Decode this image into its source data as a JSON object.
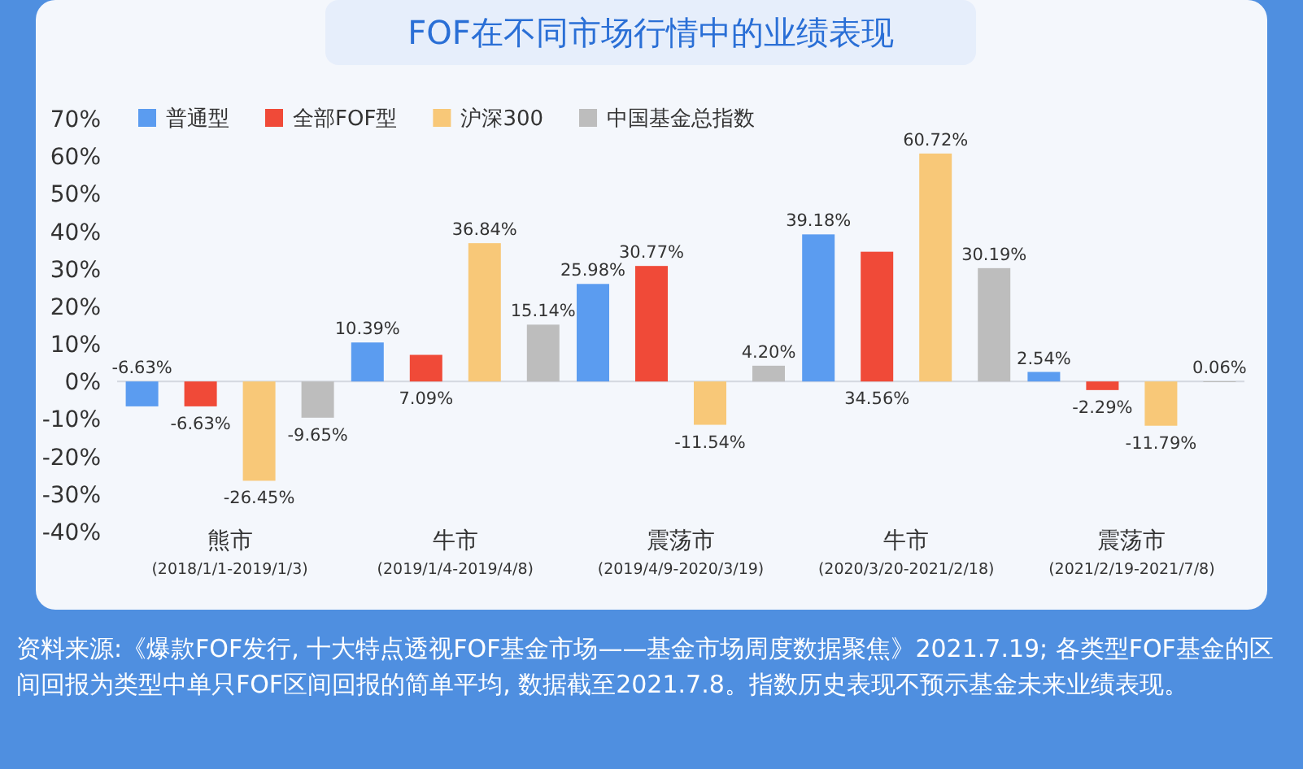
{
  "chart_data": {
    "type": "bar",
    "title": "FOF在不同市场行情中的业绩表现",
    "categories": [
      "熊市\n(2018/1/1-2019/1/3)",
      "牛市\n(2019/1/4-2019/4/8)",
      "震荡市\n(2019/4/9-2020/3/19)",
      "牛市\n(2020/3/20-2021/2/18)",
      "震荡市\n(2021/2/19-2021/7/8)"
    ],
    "series": [
      {
        "name": "普通型",
        "color": "#5b9cf0",
        "values": [
          -6.63,
          10.39,
          25.98,
          39.18,
          2.54
        ],
        "value_labels": [
          "-6.63%",
          "10.39%",
          "25.98%",
          "39.18%",
          "2.54%"
        ]
      },
      {
        "name": "全部FOF型",
        "color": "#f04a38",
        "values": [
          -6.63,
          7.09,
          30.77,
          34.56,
          -2.29
        ],
        "value_labels": [
          "-6.63%",
          "7.09%",
          "30.77%",
          "34.56%",
          "-2.29%"
        ]
      },
      {
        "name": "沪深300",
        "color": "#f8c878",
        "values": [
          -26.45,
          36.84,
          -11.54,
          60.72,
          -11.79
        ],
        "value_labels": [
          "-26.45%",
          "36.84%",
          "-11.54%",
          "60.72%",
          "-11.79%"
        ]
      },
      {
        "name": "中国基金总指数",
        "color": "#bdbdbd",
        "values": [
          -9.65,
          15.14,
          4.2,
          30.19,
          0.06
        ],
        "value_labels": [
          "-9.65%",
          "15.14%",
          "4.20%",
          "30.19%",
          "0.06%"
        ]
      }
    ],
    "ylim": [
      -40,
      70
    ],
    "yticks": [
      {
        "value": -40,
        "label": "-40%"
      },
      {
        "value": -30,
        "label": "-30%"
      },
      {
        "value": -20,
        "label": "-20%"
      },
      {
        "value": -10,
        "label": "-10%"
      },
      {
        "value": 0,
        "label": "0%"
      },
      {
        "value": 10,
        "label": "10%"
      },
      {
        "value": 20,
        "label": "20%"
      },
      {
        "value": 30,
        "label": "30%"
      },
      {
        "value": 40,
        "label": "40%"
      },
      {
        "value": 50,
        "label": "50%"
      },
      {
        "value": 60,
        "label": "60%"
      },
      {
        "value": 70,
        "label": "70%"
      }
    ],
    "legend": "top left",
    "annotations": [
      "资料来源:《爆款FOF发行, 十大特点透视FOF基金市场——基金市场周度数据聚焦》2021.7.19; 各类型FOF基金的区间回报为类型中单只FOF区间回报的简单平均, 数据截至2021.7.8。指数历史表现不预示基金未来业绩表现。"
    ]
  }
}
